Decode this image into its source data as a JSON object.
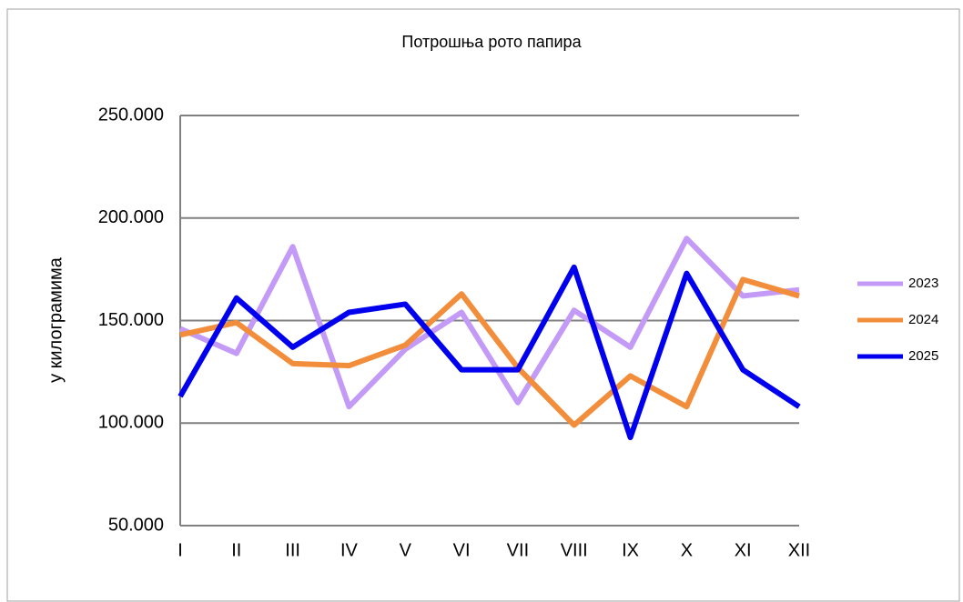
{
  "chart_data": {
    "type": "line",
    "title": "Потрошња рото папира",
    "y_label": "у килограмима",
    "categories": [
      "I",
      "II",
      "III",
      "IV",
      "V",
      "VI",
      "VII",
      "VIII",
      "IX",
      "X",
      "XI",
      "XII"
    ],
    "series": [
      {
        "name": "2023",
        "color": "#c39bf7",
        "values": [
          146000,
          134000,
          186000,
          108000,
          136000,
          154000,
          110000,
          155000,
          137000,
          190000,
          162000,
          165000
        ]
      },
      {
        "name": "2024",
        "color": "#f28e3b",
        "values": [
          143000,
          149000,
          129000,
          128000,
          138000,
          163000,
          127000,
          99000,
          123000,
          108000,
          170000,
          162000
        ]
      },
      {
        "name": "2025",
        "color": "#0000ee",
        "values": [
          113000,
          161000,
          137000,
          154000,
          158000,
          126000,
          126000,
          176000,
          93000,
          173000,
          126000,
          108000
        ]
      }
    ],
    "ylim": [
      50000,
      250000
    ],
    "yticks": [
      {
        "value": 50000,
        "label": "50.000"
      },
      {
        "value": 100000,
        "label": "100.000"
      },
      {
        "value": 150000,
        "label": "150.000"
      },
      {
        "value": 200000,
        "label": "200.000"
      },
      {
        "value": 250000,
        "label": "250.000"
      }
    ],
    "grid": true,
    "legend": "right"
  }
}
